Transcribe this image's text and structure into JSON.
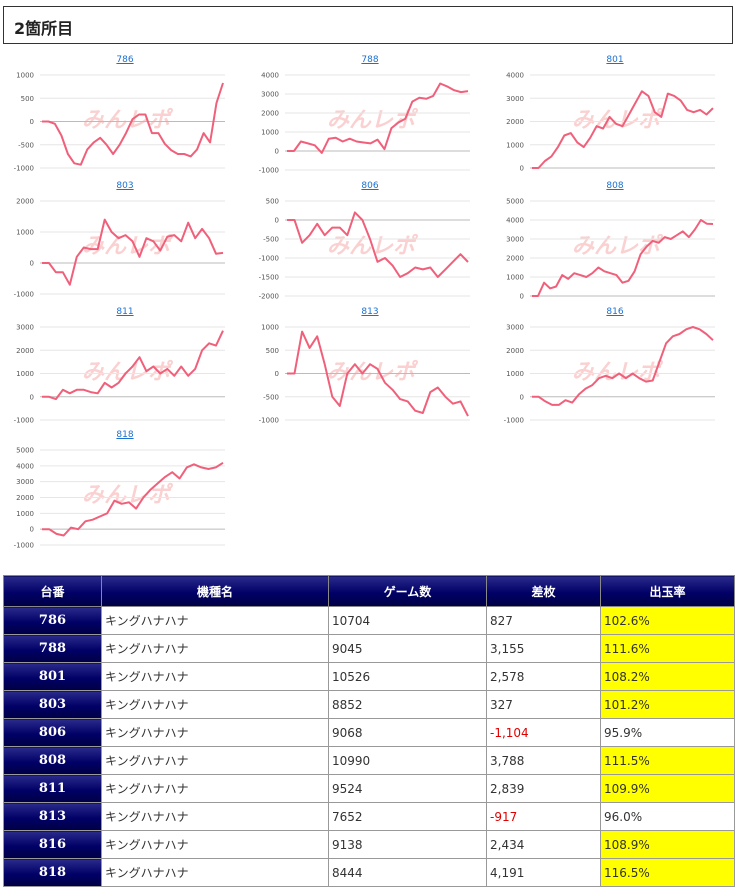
{
  "page": {
    "title": "2箇所目"
  },
  "colors": {
    "line": "#f0607a",
    "header_bg": "#000066",
    "highlight": "#ffff00",
    "negative": "#e00000"
  },
  "watermark": "みんレポ",
  "chart_data": [
    {
      "type": "line",
      "title": "786",
      "yticks": [
        1000,
        500,
        0,
        -500,
        -1000
      ],
      "ylim": [
        -1000,
        1000
      ],
      "values": [
        0,
        0,
        -50,
        -300,
        -700,
        -900,
        -930,
        -600,
        -450,
        -350,
        -500,
        -700,
        -500,
        -250,
        50,
        150,
        150,
        -250,
        -250,
        -480,
        -620,
        -700,
        -700,
        -750,
        -600,
        -250,
        -450,
        400,
        827
      ]
    },
    {
      "type": "line",
      "title": "788",
      "yticks": [
        4000,
        3000,
        2000,
        1000,
        0,
        -1000
      ],
      "ylim": [
        -1000,
        4000
      ],
      "values": [
        0,
        0,
        500,
        400,
        300,
        -100,
        650,
        700,
        500,
        650,
        500,
        450,
        400,
        600,
        100,
        1200,
        1500,
        1700,
        2600,
        2800,
        2750,
        2900,
        3550,
        3400,
        3200,
        3100,
        3155
      ]
    },
    {
      "type": "line",
      "title": "801",
      "yticks": [
        4000,
        3000,
        2000,
        1000,
        0
      ],
      "ylim": [
        0,
        4000
      ],
      "values": [
        0,
        0,
        300,
        500,
        900,
        1400,
        1500,
        1100,
        900,
        1300,
        1800,
        1700,
        2200,
        1900,
        1800,
        2300,
        2800,
        3300,
        3100,
        2400,
        2200,
        3200,
        3100,
        2900,
        2500,
        2400,
        2500,
        2300,
        2578
      ]
    },
    {
      "type": "line",
      "title": "803",
      "yticks": [
        2000,
        1000,
        0,
        -1000
      ],
      "ylim": [
        -1000,
        2000
      ],
      "values": [
        0,
        0,
        -300,
        -300,
        -700,
        200,
        500,
        450,
        450,
        1400,
        1000,
        800,
        900,
        700,
        200,
        800,
        700,
        400,
        850,
        900,
        700,
        1300,
        800,
        1100,
        800,
        300,
        327
      ]
    },
    {
      "type": "line",
      "title": "806",
      "yticks": [
        500,
        0,
        -500,
        -1000,
        -1500,
        -2000
      ],
      "ylim": [
        -2000,
        500
      ],
      "values": [
        0,
        0,
        -600,
        -400,
        -100,
        -400,
        -200,
        -200,
        -400,
        200,
        0,
        -500,
        -1100,
        -1000,
        -1200,
        -1500,
        -1400,
        -1250,
        -1300,
        -1250,
        -1500,
        -1300,
        -1100,
        -900,
        -1104
      ]
    },
    {
      "type": "line",
      "title": "808",
      "yticks": [
        5000,
        4000,
        3000,
        2000,
        1000,
        0
      ],
      "ylim": [
        0,
        5000
      ],
      "values": [
        0,
        0,
        700,
        400,
        500,
        1100,
        900,
        1200,
        1100,
        1000,
        1200,
        1500,
        1300,
        1200,
        1100,
        700,
        800,
        1300,
        2200,
        2600,
        2900,
        2800,
        3100,
        3000,
        3200,
        3400,
        3100,
        3500,
        4000,
        3800,
        3788
      ]
    },
    {
      "type": "line",
      "title": "811",
      "yticks": [
        3000,
        2000,
        1000,
        0,
        -1000
      ],
      "ylim": [
        -1000,
        3000
      ],
      "values": [
        0,
        0,
        -100,
        300,
        150,
        300,
        300,
        200,
        150,
        600,
        400,
        600,
        1000,
        1300,
        1700,
        1100,
        1300,
        1000,
        1200,
        900,
        1300,
        900,
        1200,
        2000,
        2300,
        2200,
        2839
      ]
    },
    {
      "type": "line",
      "title": "813",
      "yticks": [
        1000,
        500,
        0,
        -500,
        -1000
      ],
      "ylim": [
        -1000,
        1000
      ],
      "values": [
        0,
        0,
        900,
        550,
        800,
        200,
        -500,
        -700,
        0,
        200,
        0,
        200,
        100,
        -200,
        -350,
        -550,
        -600,
        -800,
        -850,
        -400,
        -300,
        -500,
        -650,
        -600,
        -917
      ]
    },
    {
      "type": "line",
      "title": "816",
      "yticks": [
        3000,
        2000,
        1000,
        0,
        -1000
      ],
      "ylim": [
        -1000,
        3000
      ],
      "values": [
        0,
        0,
        -200,
        -350,
        -350,
        -150,
        -250,
        100,
        350,
        500,
        800,
        900,
        800,
        1000,
        800,
        1000,
        800,
        650,
        700,
        1500,
        2300,
        2600,
        2700,
        2900,
        3000,
        2900,
        2700,
        2434
      ]
    },
    {
      "type": "line",
      "title": "818",
      "yticks": [
        5000,
        4000,
        3000,
        2000,
        1000,
        0,
        -1000
      ],
      "ylim": [
        -1000,
        5000
      ],
      "values": [
        0,
        0,
        -300,
        -400,
        100,
        0,
        500,
        600,
        800,
        1000,
        1800,
        1600,
        1700,
        1300,
        2000,
        2500,
        2900,
        3300,
        3600,
        3200,
        3900,
        4100,
        3900,
        3800,
        3900,
        4191
      ]
    }
  ],
  "table": {
    "headers": [
      "台番",
      "機種名",
      "ゲーム数",
      "差枚",
      "出玉率"
    ],
    "rows": [
      {
        "num": "786",
        "name": "キングハナハナ",
        "games": "10704",
        "diff": "827",
        "rate": "102.6%",
        "neg": false,
        "hi": true
      },
      {
        "num": "788",
        "name": "キングハナハナ",
        "games": "9045",
        "diff": "3,155",
        "rate": "111.6%",
        "neg": false,
        "hi": true
      },
      {
        "num": "801",
        "name": "キングハナハナ",
        "games": "10526",
        "diff": "2,578",
        "rate": "108.2%",
        "neg": false,
        "hi": true
      },
      {
        "num": "803",
        "name": "キングハナハナ",
        "games": "8852",
        "diff": "327",
        "rate": "101.2%",
        "neg": false,
        "hi": true
      },
      {
        "num": "806",
        "name": "キングハナハナ",
        "games": "9068",
        "diff": "-1,104",
        "rate": "95.9%",
        "neg": true,
        "hi": false
      },
      {
        "num": "808",
        "name": "キングハナハナ",
        "games": "10990",
        "diff": "3,788",
        "rate": "111.5%",
        "neg": false,
        "hi": true
      },
      {
        "num": "811",
        "name": "キングハナハナ",
        "games": "9524",
        "diff": "2,839",
        "rate": "109.9%",
        "neg": false,
        "hi": true
      },
      {
        "num": "813",
        "name": "キングハナハナ",
        "games": "7652",
        "diff": "-917",
        "rate": "96.0%",
        "neg": true,
        "hi": false
      },
      {
        "num": "816",
        "name": "キングハナハナ",
        "games": "9138",
        "diff": "2,434",
        "rate": "108.9%",
        "neg": false,
        "hi": true
      },
      {
        "num": "818",
        "name": "キングハナハナ",
        "games": "8444",
        "diff": "4,191",
        "rate": "116.5%",
        "neg": false,
        "hi": true
      }
    ]
  }
}
